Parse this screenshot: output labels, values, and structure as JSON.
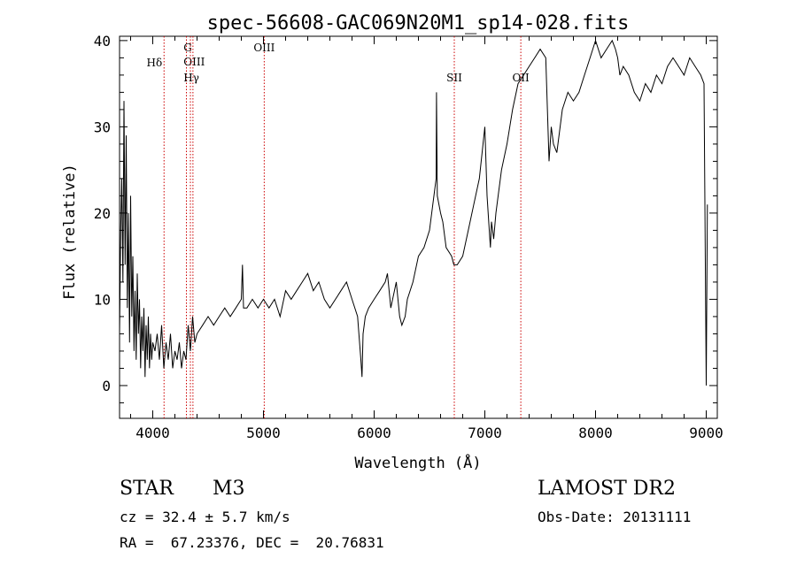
{
  "chart_data": {
    "type": "line",
    "title": "spec-56608-GAC069N20M1_sp14-028.fits",
    "xlabel": "Wavelength (Å)",
    "ylabel": "Flux (relative)",
    "xlim": [
      3700,
      9100
    ],
    "ylim": [
      -3.8,
      40.5
    ],
    "xticks": [
      4000,
      5000,
      6000,
      7000,
      8000,
      9000
    ],
    "yticks": [
      0,
      10,
      20,
      30,
      40
    ],
    "line_color": "#000000",
    "marker_color": "#cc0000",
    "line_markers": [
      {
        "label": "Hδ",
        "wavelength": 4102
      },
      {
        "label": "G",
        "wavelength": 4304
      },
      {
        "label": "OIII",
        "wavelength": 4363
      },
      {
        "label": "Hγ",
        "wavelength": 4340
      },
      {
        "label": "OIII",
        "wavelength": 5007
      },
      {
        "label": "SII",
        "wavelength": 6724
      },
      {
        "label": "OII",
        "wavelength": 7325
      }
    ],
    "series": [
      {
        "x": [
          3700,
          3710,
          3720,
          3730,
          3740,
          3750,
          3760,
          3770,
          3780,
          3790,
          3800,
          3810,
          3820,
          3830,
          3840,
          3850,
          3860,
          3870,
          3880,
          3890,
          3900,
          3910,
          3920,
          3930,
          3940,
          3950,
          3960,
          3970,
          3980,
          3990,
          4000,
          4020,
          4040,
          4060,
          4080,
          4100,
          4120,
          4140,
          4160,
          4180,
          4200,
          4220,
          4240,
          4260,
          4280,
          4300,
          4320,
          4340,
          4360,
          4380,
          4400,
          4450,
          4500,
          4550,
          4600,
          4650,
          4700,
          4750,
          4800,
          4810,
          4820,
          4850,
          4900,
          4950,
          5000,
          5050,
          5100,
          5150,
          5200,
          5250,
          5300,
          5350,
          5400,
          5450,
          5500,
          5550,
          5600,
          5650,
          5700,
          5750,
          5800,
          5850,
          5880,
          5890,
          5900,
          5920,
          5950,
          6000,
          6050,
          6100,
          6120,
          6150,
          6200,
          6230,
          6250,
          6280,
          6300,
          6350,
          6400,
          6450,
          6500,
          6520,
          6540,
          6560,
          6563,
          6570,
          6600,
          6620,
          6650,
          6700,
          6720,
          6750,
          6800,
          6850,
          6900,
          6950,
          7000,
          7020,
          7040,
          7050,
          7060,
          7080,
          7100,
          7150,
          7200,
          7250,
          7300,
          7350,
          7400,
          7450,
          7500,
          7550,
          7580,
          7590,
          7600,
          7620,
          7650,
          7700,
          7750,
          7800,
          7850,
          7900,
          7950,
          8000,
          8050,
          8100,
          8150,
          8180,
          8200,
          8220,
          8250,
          8300,
          8350,
          8400,
          8450,
          8500,
          8550,
          8600,
          8650,
          8700,
          8750,
          8800,
          8850,
          8900,
          8950,
          8980,
          9000,
          9010
        ],
        "y": [
          6,
          18,
          24,
          12,
          33,
          14,
          29,
          9,
          20,
          5,
          22,
          8,
          15,
          4,
          11,
          3,
          13,
          6,
          10,
          2,
          8,
          4,
          9,
          1,
          7,
          3,
          8,
          2,
          6,
          3,
          5,
          4,
          6,
          3,
          7,
          2,
          5,
          3,
          6,
          2,
          4,
          3,
          5,
          2,
          4,
          3,
          7,
          4,
          8,
          5,
          6,
          7,
          8,
          7,
          8,
          9,
          8,
          9,
          10,
          14,
          9,
          9,
          10,
          9,
          10,
          9,
          10,
          8,
          11,
          10,
          11,
          12,
          13,
          11,
          12,
          10,
          9,
          10,
          11,
          12,
          10,
          8,
          3,
          1,
          6,
          8,
          9,
          10,
          11,
          12,
          13,
          9,
          12,
          8,
          7,
          8,
          10,
          12,
          15,
          16,
          18,
          20,
          22,
          24,
          34,
          22,
          20,
          19,
          16,
          15,
          14,
          14,
          15,
          18,
          21,
          24,
          30,
          22,
          18,
          16,
          19,
          17,
          20,
          25,
          28,
          32,
          35,
          36,
          37,
          38,
          39,
          38,
          26,
          28,
          30,
          28,
          27,
          32,
          34,
          33,
          34,
          36,
          38,
          40,
          38,
          39,
          40,
          39,
          38,
          36,
          37,
          36,
          34,
          33,
          35,
          34,
          36,
          35,
          37,
          38,
          37,
          36,
          38,
          37,
          36,
          35,
          0,
          21
        ]
      }
    ]
  },
  "footer": {
    "object_class": "STAR",
    "subclass": "M3",
    "survey": "LAMOST DR2",
    "velocity": "cz = 32.4 ± 5.7 km/s",
    "obs_date": "Obs-Date: 20131111",
    "coordinates": "RA =  67.23376, DEC =  20.76831"
  }
}
